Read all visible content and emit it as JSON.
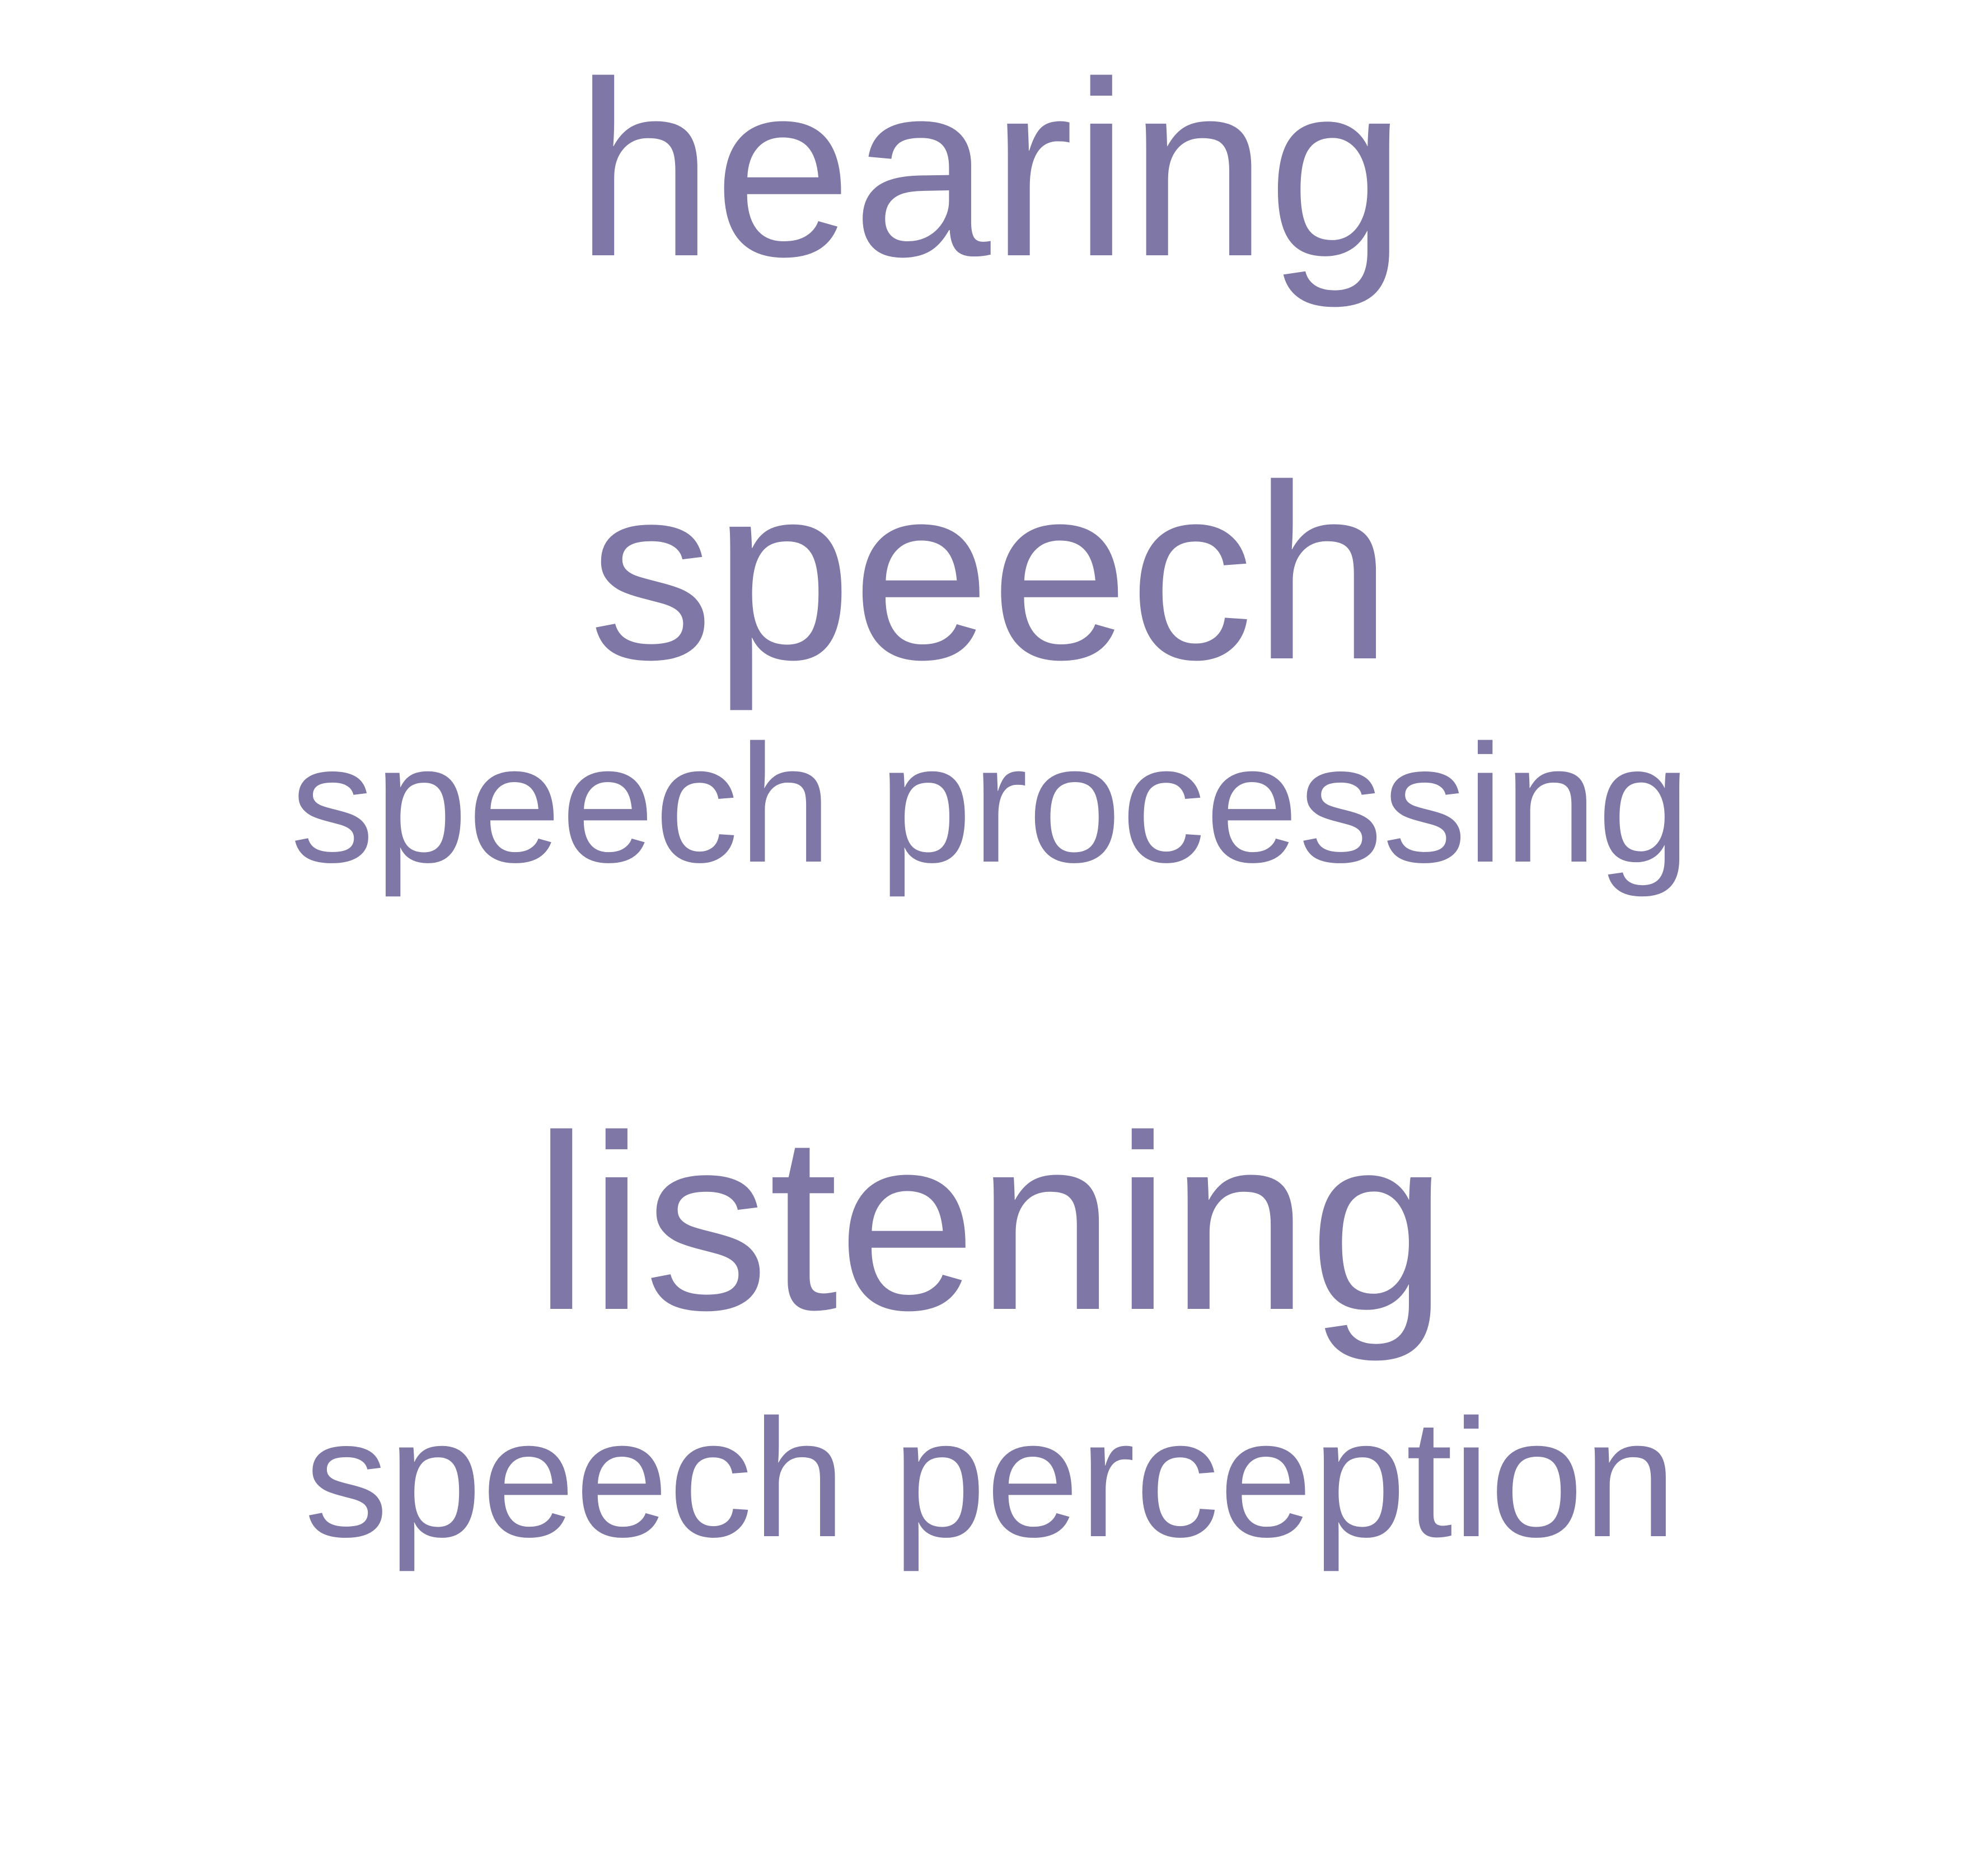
{
  "terms": {
    "hearing": "hearing",
    "speech": "speech",
    "speech_processing": "speech processing",
    "listening": "listening",
    "speech_perception": "speech perception"
  },
  "colors": {
    "text": "#7f77a5",
    "background": "#ffffff"
  }
}
